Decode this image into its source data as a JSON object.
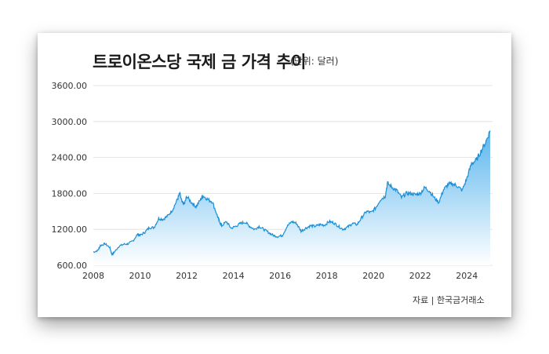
{
  "title": "트로이온스당 국제 금 가격 추이",
  "unit_label": "(단위: 달러)",
  "source": "자료 | 한국금거래소",
  "colors": {
    "line": "#1a8fd6",
    "fill_top": "#5bb6ee",
    "fill_bottom": "#ffffff",
    "grid": "#dddddd"
  },
  "chart_data": {
    "type": "area",
    "title": "트로이온스당 국제 금 가격 추이",
    "subtitle": "(단위: 달러)",
    "xlabel": "",
    "ylabel": "",
    "xlim": [
      2008,
      2025.1
    ],
    "ylim": [
      600,
      3600
    ],
    "grid": true,
    "x_ticks": [
      "2008",
      "2010",
      "2012",
      "2014",
      "2016",
      "2018",
      "2020",
      "2022",
      "2024"
    ],
    "y_ticks": [
      "600.00",
      "1200.00",
      "1800.00",
      "2400.00",
      "3000.00",
      "3600.00"
    ],
    "series": [
      {
        "x": [
          2008.0,
          2008.2,
          2008.3,
          2008.5,
          2008.7,
          2008.8,
          2008.9,
          2009.1,
          2009.3,
          2009.5,
          2009.7,
          2009.9,
          2010.0,
          2010.2,
          2010.4,
          2010.6,
          2010.8,
          2011.0,
          2011.2,
          2011.4,
          2011.6,
          2011.7,
          2011.8,
          2011.9,
          2012.0,
          2012.2,
          2012.4,
          2012.6,
          2012.7,
          2012.9,
          2013.1,
          2013.3,
          2013.4,
          2013.5,
          2013.7,
          2013.9,
          2014.1,
          2014.3,
          2014.5,
          2014.7,
          2014.9,
          2015.1,
          2015.3,
          2015.5,
          2015.7,
          2015.9,
          2016.1,
          2016.3,
          2016.5,
          2016.7,
          2016.9,
          2017.1,
          2017.3,
          2017.5,
          2017.7,
          2017.9,
          2018.1,
          2018.3,
          2018.5,
          2018.7,
          2018.9,
          2019.1,
          2019.3,
          2019.5,
          2019.7,
          2019.9,
          2020.1,
          2020.3,
          2020.5,
          2020.6,
          2020.8,
          2021.0,
          2021.2,
          2021.4,
          2021.6,
          2021.8,
          2022.0,
          2022.2,
          2022.4,
          2022.6,
          2022.8,
          2023.0,
          2023.2,
          2023.4,
          2023.6,
          2023.8,
          2024.0,
          2024.2,
          2024.4,
          2024.6,
          2024.8,
          2025.0
        ],
        "values": [
          820,
          850,
          930,
          960,
          900,
          780,
          820,
          920,
          950,
          960,
          1010,
          1120,
          1100,
          1150,
          1230,
          1230,
          1380,
          1370,
          1430,
          1530,
          1700,
          1800,
          1650,
          1620,
          1750,
          1650,
          1580,
          1700,
          1760,
          1700,
          1660,
          1440,
          1330,
          1260,
          1330,
          1220,
          1250,
          1300,
          1320,
          1250,
          1200,
          1250,
          1200,
          1150,
          1100,
          1080,
          1100,
          1250,
          1330,
          1300,
          1170,
          1220,
          1260,
          1250,
          1280,
          1270,
          1330,
          1310,
          1250,
          1200,
          1240,
          1300,
          1280,
          1400,
          1500,
          1480,
          1560,
          1700,
          1750,
          1970,
          1900,
          1850,
          1730,
          1800,
          1800,
          1780,
          1800,
          1900,
          1840,
          1730,
          1650,
          1860,
          1950,
          1960,
          1920,
          1850,
          2050,
          2300,
          2350,
          2500,
          2650,
          2850
        ]
      }
    ]
  }
}
